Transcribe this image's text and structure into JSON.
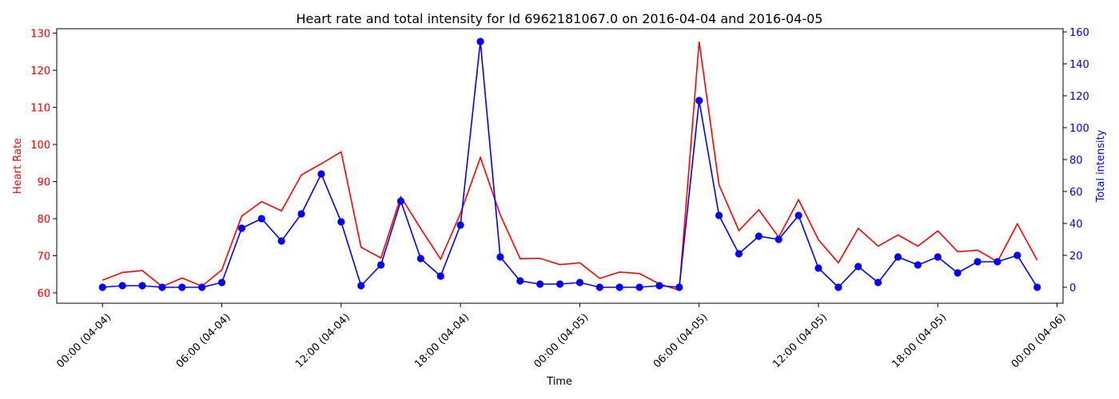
{
  "chart_data": {
    "type": "line",
    "title": "Heart rate and total intensity for Id 6962181067.0 on 2016-04-04 and 2016-04-05",
    "xlabel": "Time",
    "ylabel_left": "Heart Rate",
    "ylabel_right": "Total intensity",
    "x_tick_labels": [
      "00:00 (04-04)",
      "06:00 (04-04)",
      "12:00 (04-04)",
      "18:00 (04-04)",
      "00:00 (04-05)",
      "06:00 (04-05)",
      "12:00 (04-05)",
      "18:00 (04-05)",
      "00:00 (04-06)"
    ],
    "x_ticks_hours": [
      0,
      6,
      12,
      18,
      24,
      30,
      36,
      42,
      48
    ],
    "xlim_hours": [
      -2.3,
      48.3
    ],
    "y_left_ticks": [
      60,
      70,
      80,
      90,
      100,
      110,
      120,
      130
    ],
    "y_left_lim": [
      57.2,
      131.2
    ],
    "y_right_ticks": [
      0,
      20,
      40,
      60,
      80,
      100,
      120,
      140,
      160
    ],
    "y_right_lim": [
      -10,
      162
    ],
    "colors": {
      "heart_rate": "#ff0000",
      "intensity": "#0000ff",
      "axis": "#000000"
    },
    "x_hours": [
      0,
      1,
      2,
      3,
      4,
      5,
      6,
      7,
      8,
      9,
      10,
      11,
      12,
      13,
      14,
      15,
      16,
      17,
      18,
      19,
      20,
      21,
      22,
      23,
      24,
      25,
      26,
      27,
      28,
      29,
      30,
      31,
      32,
      33,
      34,
      35,
      36,
      37,
      38,
      39,
      40,
      41,
      42,
      43,
      44,
      45,
      46,
      47
    ],
    "series": [
      {
        "name": "Heart Rate",
        "axis": "left",
        "values": [
          63.4,
          65.5,
          66.0,
          61.7,
          64.0,
          61.8,
          66.2,
          80.7,
          84.6,
          82.1,
          91.8,
          94.8,
          98.0,
          72.3,
          69.4,
          85.9,
          77.3,
          69.1,
          81.4,
          96.5,
          81.0,
          69.2,
          69.3,
          67.6,
          68.1,
          63.9,
          65.6,
          65.2,
          62.4,
          60.7,
          127.7,
          89.1,
          76.8,
          82.4,
          75.0,
          85.1,
          74.3,
          68.1,
          77.4,
          72.6,
          75.6,
          72.6,
          76.7,
          71.1,
          71.5,
          68.4,
          78.6,
          68.8
        ]
      },
      {
        "name": "Total intensity",
        "axis": "right",
        "values": [
          0,
          1,
          1,
          0,
          0,
          0,
          3,
          37,
          43,
          29,
          46,
          71,
          41,
          1,
          14,
          54,
          18,
          7,
          39,
          154,
          19,
          4,
          2,
          2,
          3,
          0,
          0,
          0,
          1,
          0,
          117,
          45,
          21,
          32,
          30,
          45,
          12,
          0,
          13,
          3,
          19,
          14,
          19,
          9,
          16,
          16,
          20,
          0
        ]
      }
    ]
  }
}
